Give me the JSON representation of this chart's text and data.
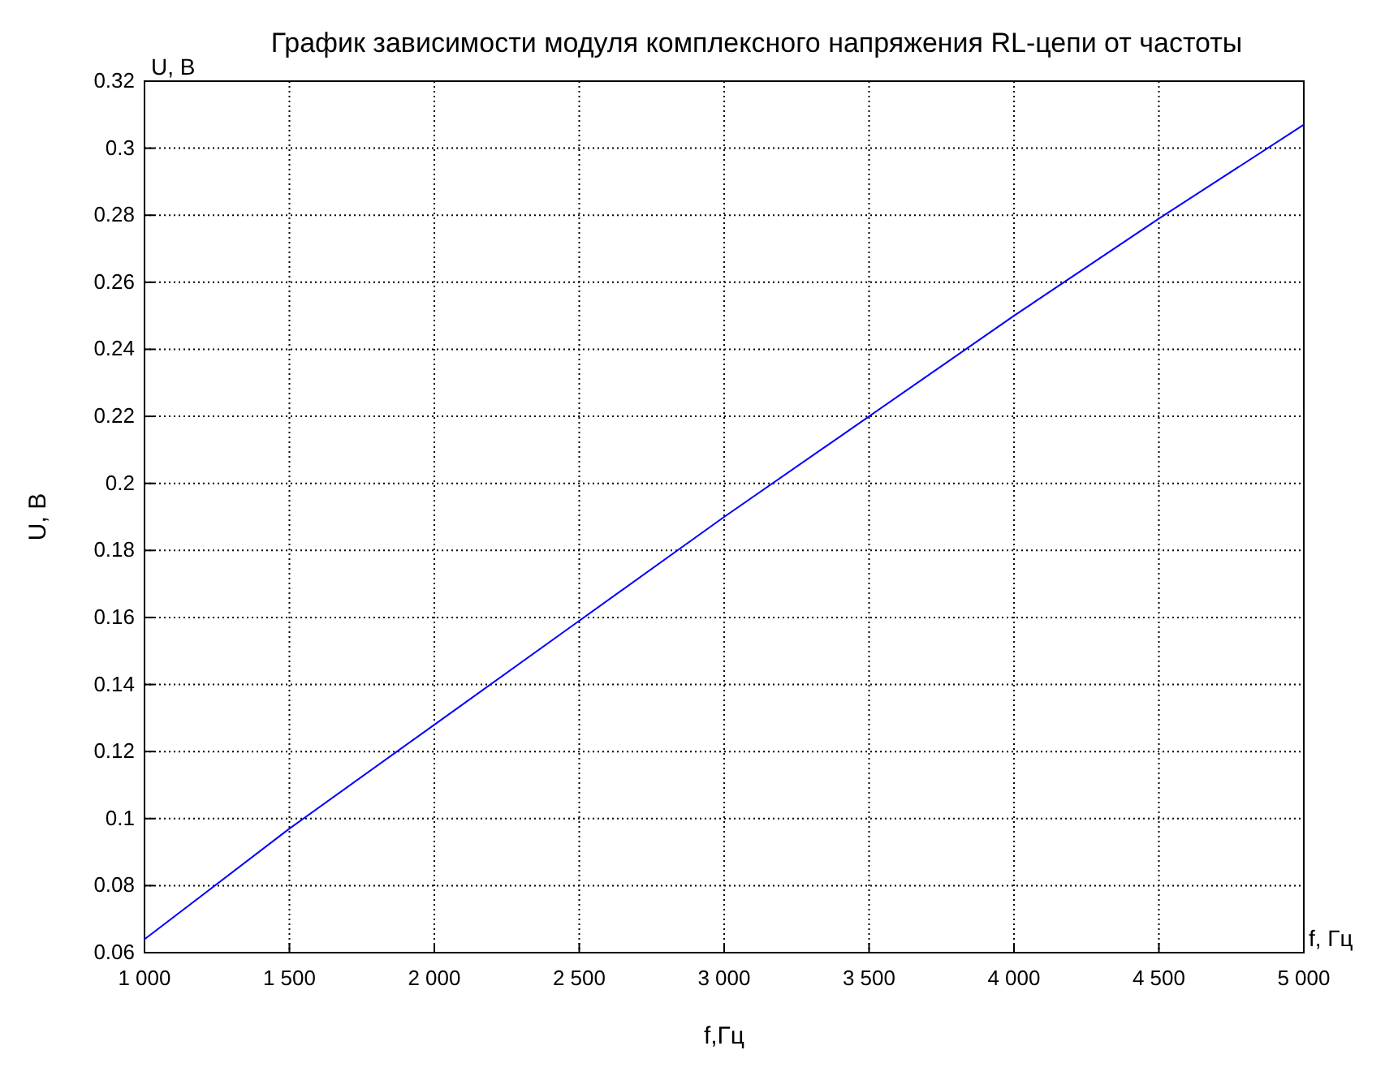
{
  "chart_data": {
    "type": "line",
    "title": "График зависимости модуля комплексного напряжения RL-цепи от частоты",
    "xlabel": "f,Гц",
    "ylabel": "U, В",
    "annotations": [
      "U, В",
      "f, Гц"
    ],
    "x": [
      1000,
      1500,
      2000,
      2500,
      3000,
      3500,
      4000,
      4500,
      5000
    ],
    "series": [
      {
        "color": "#0000ff",
        "values": [
          0.064,
          0.097,
          0.128,
          0.159,
          0.19,
          0.22,
          0.25,
          0.279,
          0.307
        ]
      }
    ],
    "xlim": [
      1000,
      5000
    ],
    "xticks": [
      {
        "value": 1000,
        "label": "1 000"
      },
      {
        "value": 1500,
        "label": "1 500"
      },
      {
        "value": 2000,
        "label": "2 000"
      },
      {
        "value": 2500,
        "label": "2 500"
      },
      {
        "value": 3000,
        "label": "3 000"
      },
      {
        "value": 3500,
        "label": "3 500"
      },
      {
        "value": 4000,
        "label": "4 000"
      },
      {
        "value": 4500,
        "label": "4 500"
      },
      {
        "value": 5000,
        "label": "5 000"
      }
    ],
    "ylim": [
      0.06,
      0.32
    ],
    "yticks": [
      0.06,
      0.08,
      0.1,
      0.12,
      0.14,
      0.16,
      0.18,
      0.2,
      0.22,
      0.24,
      0.26,
      0.28,
      0.3,
      0.32
    ],
    "grid": true,
    "line_style": "solid"
  }
}
